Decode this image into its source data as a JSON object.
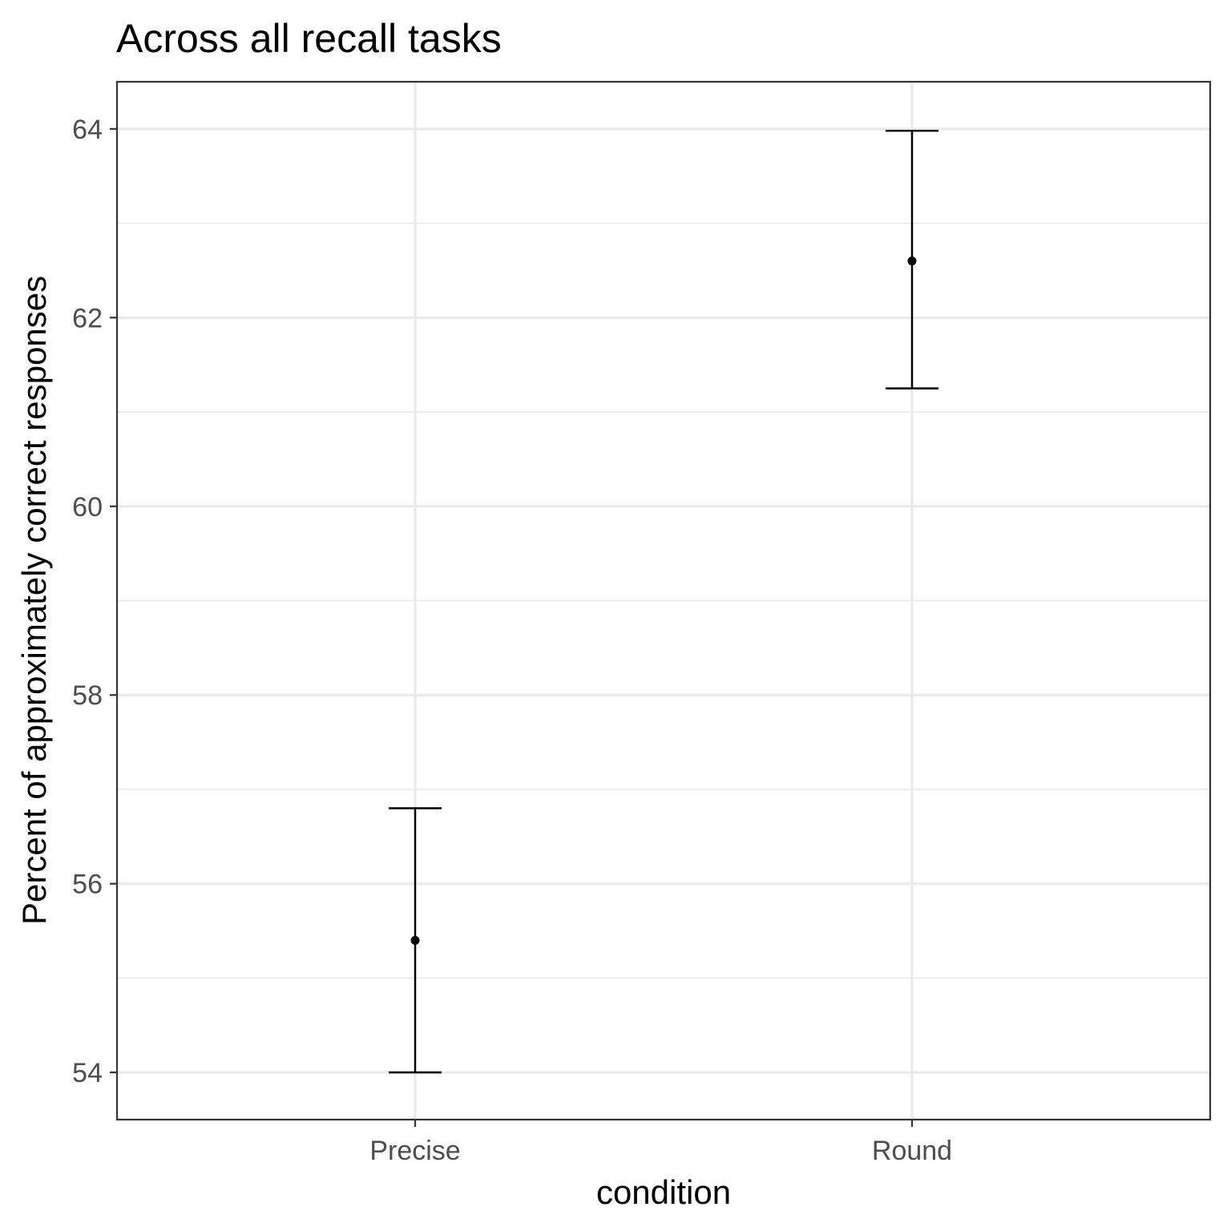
{
  "chart_data": {
    "type": "scatter",
    "title": "Across all recall tasks",
    "xlabel": "condition",
    "ylabel": "Percent of approximately correct responses",
    "categories": [
      "Precise",
      "Round"
    ],
    "points": [
      {
        "category": "Precise",
        "mean": 55.4,
        "lower": 54.0,
        "upper": 56.8
      },
      {
        "category": "Round",
        "mean": 62.6,
        "lower": 61.25,
        "upper": 63.98
      }
    ],
    "ylim": [
      53.5,
      64.5
    ],
    "yticks": [
      54,
      56,
      58,
      60,
      62,
      64
    ],
    "ytick_labels": [
      "54",
      "56",
      "58",
      "60",
      "62",
      "64"
    ],
    "grid": true,
    "colors": {
      "point": "#000000",
      "grid": "#ebebeb",
      "border": "#333333"
    }
  }
}
